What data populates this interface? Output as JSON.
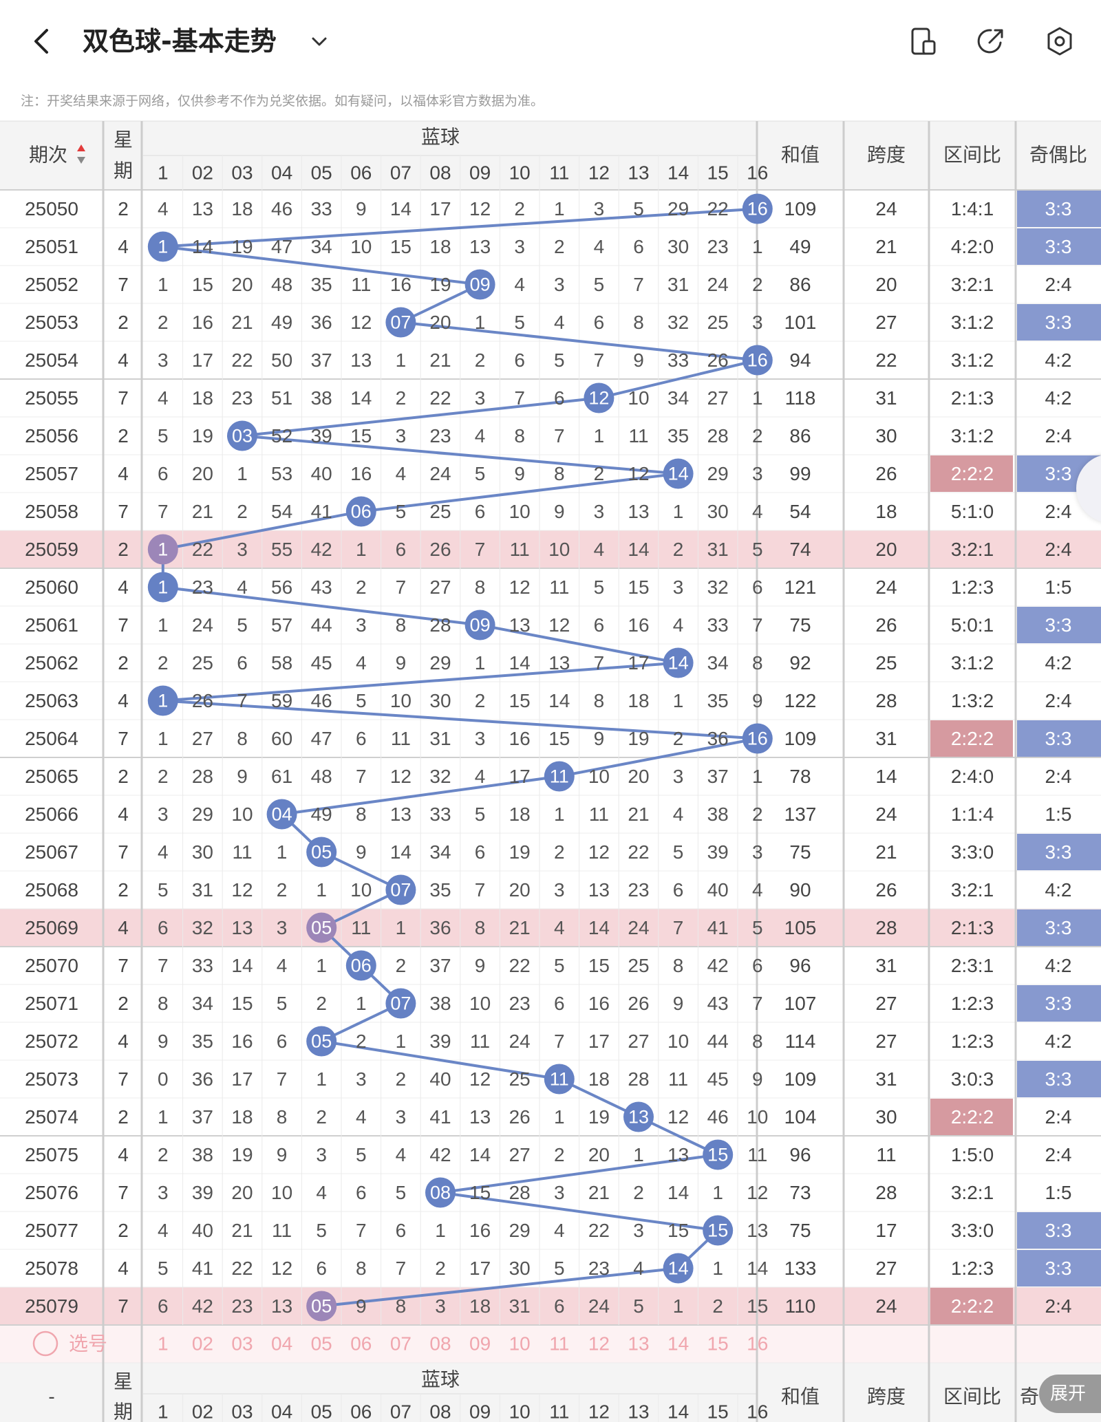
{
  "header": {
    "title": "双色球-基本走势",
    "note": "注：开奖结果来源于网络，仅供参考不作为兑奖依据。如有疑问，以福体彩官方数据为准。"
  },
  "icons": {
    "back": "back-chevron-icon",
    "dropdown": "chevron-down-icon",
    "device": "device-layout-icon",
    "share": "share-icon",
    "settings": "settings-icon"
  },
  "table": {
    "col_issue": "期次",
    "col_week": "星期",
    "col_blue": "蓝球",
    "col_sum": "和值",
    "col_span": "跨度",
    "col_zone": "区间比",
    "col_oddeven": "奇偶比",
    "blue_labels": [
      "1",
      "02",
      "03",
      "04",
      "05",
      "06",
      "07",
      "08",
      "09",
      "10",
      "11",
      "12",
      "13",
      "14",
      "15",
      "16"
    ],
    "rows": [
      {
        "issue": "25050",
        "week": "2",
        "cells": [
          "4",
          "13",
          "18",
          "46",
          "33",
          "9",
          "14",
          "17",
          "12",
          "2",
          "1",
          "3",
          "5",
          "29",
          "22",
          "16"
        ],
        "hit": 16,
        "sum": "109",
        "span": "24",
        "zone": "1:4:1",
        "oe": "3:3",
        "hl": "",
        "zone_hl": false,
        "oe_hl": true
      },
      {
        "issue": "25051",
        "week": "4",
        "cells": [
          "1",
          "14",
          "19",
          "47",
          "34",
          "10",
          "15",
          "18",
          "13",
          "3",
          "2",
          "4",
          "6",
          "30",
          "23",
          "1"
        ],
        "hit": 1,
        "sum": "49",
        "span": "21",
        "zone": "4:2:0",
        "oe": "3:3",
        "hl": "",
        "zone_hl": false,
        "oe_hl": true
      },
      {
        "issue": "25052",
        "week": "7",
        "cells": [
          "1",
          "15",
          "20",
          "48",
          "35",
          "11",
          "16",
          "19",
          "09",
          "4",
          "3",
          "5",
          "7",
          "31",
          "24",
          "2"
        ],
        "hit": 9,
        "sum": "86",
        "span": "20",
        "zone": "3:2:1",
        "oe": "2:4",
        "hl": "",
        "zone_hl": false,
        "oe_hl": false
      },
      {
        "issue": "25053",
        "week": "2",
        "cells": [
          "2",
          "16",
          "21",
          "49",
          "36",
          "12",
          "07",
          "20",
          "1",
          "5",
          "4",
          "6",
          "8",
          "32",
          "25",
          "3"
        ],
        "hit": 7,
        "sum": "101",
        "span": "27",
        "zone": "3:1:2",
        "oe": "3:3",
        "hl": "",
        "zone_hl": false,
        "oe_hl": true
      },
      {
        "issue": "25054",
        "week": "4",
        "cells": [
          "3",
          "17",
          "22",
          "50",
          "37",
          "13",
          "1",
          "21",
          "2",
          "6",
          "5",
          "7",
          "9",
          "33",
          "26",
          "16"
        ],
        "hit": 16,
        "sum": "94",
        "span": "22",
        "zone": "3:1:2",
        "oe": "4:2",
        "hl": "",
        "zone_hl": false,
        "oe_hl": false
      },
      {
        "issue": "25055",
        "week": "7",
        "cells": [
          "4",
          "18",
          "23",
          "51",
          "38",
          "14",
          "2",
          "22",
          "3",
          "7",
          "6",
          "12",
          "10",
          "34",
          "27",
          "1"
        ],
        "hit": 12,
        "sum": "118",
        "span": "31",
        "zone": "2:1:3",
        "oe": "4:2",
        "hl": "",
        "zone_hl": false,
        "oe_hl": false
      },
      {
        "issue": "25056",
        "week": "2",
        "cells": [
          "5",
          "19",
          "03",
          "52",
          "39",
          "15",
          "3",
          "23",
          "4",
          "8",
          "7",
          "1",
          "11",
          "35",
          "28",
          "2"
        ],
        "hit": 3,
        "sum": "86",
        "span": "30",
        "zone": "3:1:2",
        "oe": "2:4",
        "hl": "",
        "zone_hl": false,
        "oe_hl": false
      },
      {
        "issue": "25057",
        "week": "4",
        "cells": [
          "6",
          "20",
          "1",
          "53",
          "40",
          "16",
          "4",
          "24",
          "5",
          "9",
          "8",
          "2",
          "12",
          "14",
          "29",
          "3"
        ],
        "hit": 14,
        "sum": "99",
        "span": "26",
        "zone": "2:2:2",
        "oe": "3:3",
        "hl": "",
        "zone_hl": true,
        "oe_hl": true
      },
      {
        "issue": "25058",
        "week": "7",
        "cells": [
          "7",
          "21",
          "2",
          "54",
          "41",
          "06",
          "5",
          "25",
          "6",
          "10",
          "9",
          "3",
          "13",
          "1",
          "30",
          "4"
        ],
        "hit": 6,
        "sum": "54",
        "span": "18",
        "zone": "5:1:0",
        "oe": "2:4",
        "hl": "",
        "zone_hl": false,
        "oe_hl": false
      },
      {
        "issue": "25059",
        "week": "2",
        "cells": [
          "1",
          "22",
          "3",
          "55",
          "42",
          "1",
          "6",
          "26",
          "7",
          "11",
          "10",
          "4",
          "14",
          "2",
          "31",
          "5"
        ],
        "hit": 1,
        "sum": "74",
        "span": "20",
        "zone": "3:2:1",
        "oe": "2:4",
        "hl": "pink",
        "zone_hl": false,
        "oe_hl": false
      },
      {
        "issue": "25060",
        "week": "4",
        "cells": [
          "1",
          "23",
          "4",
          "56",
          "43",
          "2",
          "7",
          "27",
          "8",
          "12",
          "11",
          "5",
          "15",
          "3",
          "32",
          "6"
        ],
        "hit": 1,
        "sum": "121",
        "span": "24",
        "zone": "1:2:3",
        "oe": "1:5",
        "hl": "",
        "zone_hl": false,
        "oe_hl": false
      },
      {
        "issue": "25061",
        "week": "7",
        "cells": [
          "1",
          "24",
          "5",
          "57",
          "44",
          "3",
          "8",
          "28",
          "09",
          "13",
          "12",
          "6",
          "16",
          "4",
          "33",
          "7"
        ],
        "hit": 9,
        "sum": "75",
        "span": "26",
        "zone": "5:0:1",
        "oe": "3:3",
        "hl": "",
        "zone_hl": false,
        "oe_hl": true
      },
      {
        "issue": "25062",
        "week": "2",
        "cells": [
          "2",
          "25",
          "6",
          "58",
          "45",
          "4",
          "9",
          "29",
          "1",
          "14",
          "13",
          "7",
          "17",
          "14",
          "34",
          "8"
        ],
        "hit": 14,
        "sum": "92",
        "span": "25",
        "zone": "3:1:2",
        "oe": "4:2",
        "hl": "",
        "zone_hl": false,
        "oe_hl": false
      },
      {
        "issue": "25063",
        "week": "4",
        "cells": [
          "1",
          "26",
          "7",
          "59",
          "46",
          "5",
          "10",
          "30",
          "2",
          "15",
          "14",
          "8",
          "18",
          "1",
          "35",
          "9"
        ],
        "hit": 1,
        "sum": "122",
        "span": "28",
        "zone": "1:3:2",
        "oe": "2:4",
        "hl": "",
        "zone_hl": false,
        "oe_hl": false
      },
      {
        "issue": "25064",
        "week": "7",
        "cells": [
          "1",
          "27",
          "8",
          "60",
          "47",
          "6",
          "11",
          "31",
          "3",
          "16",
          "15",
          "9",
          "19",
          "2",
          "36",
          "16"
        ],
        "hit": 16,
        "sum": "109",
        "span": "31",
        "zone": "2:2:2",
        "oe": "3:3",
        "hl": "",
        "zone_hl": true,
        "oe_hl": true
      },
      {
        "issue": "25065",
        "week": "2",
        "cells": [
          "2",
          "28",
          "9",
          "61",
          "48",
          "7",
          "12",
          "32",
          "4",
          "17",
          "11",
          "10",
          "20",
          "3",
          "37",
          "1"
        ],
        "hit": 11,
        "sum": "78",
        "span": "14",
        "zone": "2:4:0",
        "oe": "2:4",
        "hl": "",
        "zone_hl": false,
        "oe_hl": false
      },
      {
        "issue": "25066",
        "week": "4",
        "cells": [
          "3",
          "29",
          "10",
          "04",
          "49",
          "8",
          "13",
          "33",
          "5",
          "18",
          "1",
          "11",
          "21",
          "4",
          "38",
          "2"
        ],
        "hit": 4,
        "sum": "137",
        "span": "24",
        "zone": "1:1:4",
        "oe": "1:5",
        "hl": "",
        "zone_hl": false,
        "oe_hl": false
      },
      {
        "issue": "25067",
        "week": "7",
        "cells": [
          "4",
          "30",
          "11",
          "1",
          "05",
          "9",
          "14",
          "34",
          "6",
          "19",
          "2",
          "12",
          "22",
          "5",
          "39",
          "3"
        ],
        "hit": 5,
        "sum": "75",
        "span": "21",
        "zone": "3:3:0",
        "oe": "3:3",
        "hl": "",
        "zone_hl": false,
        "oe_hl": true
      },
      {
        "issue": "25068",
        "week": "2",
        "cells": [
          "5",
          "31",
          "12",
          "2",
          "1",
          "10",
          "07",
          "35",
          "7",
          "20",
          "3",
          "13",
          "23",
          "6",
          "40",
          "4"
        ],
        "hit": 7,
        "sum": "90",
        "span": "26",
        "zone": "3:2:1",
        "oe": "4:2",
        "hl": "",
        "zone_hl": false,
        "oe_hl": false
      },
      {
        "issue": "25069",
        "week": "4",
        "cells": [
          "6",
          "32",
          "13",
          "3",
          "05",
          "11",
          "1",
          "36",
          "8",
          "21",
          "4",
          "14",
          "24",
          "7",
          "41",
          "5"
        ],
        "hit": 5,
        "sum": "105",
        "span": "28",
        "zone": "2:1:3",
        "oe": "3:3",
        "hl": "pink",
        "zone_hl": false,
        "oe_hl": true
      },
      {
        "issue": "25070",
        "week": "7",
        "cells": [
          "7",
          "33",
          "14",
          "4",
          "1",
          "06",
          "2",
          "37",
          "9",
          "22",
          "5",
          "15",
          "25",
          "8",
          "42",
          "6"
        ],
        "hit": 6,
        "sum": "96",
        "span": "31",
        "zone": "2:3:1",
        "oe": "4:2",
        "hl": "",
        "zone_hl": false,
        "oe_hl": false
      },
      {
        "issue": "25071",
        "week": "2",
        "cells": [
          "8",
          "34",
          "15",
          "5",
          "2",
          "1",
          "07",
          "38",
          "10",
          "23",
          "6",
          "16",
          "26",
          "9",
          "43",
          "7"
        ],
        "hit": 7,
        "sum": "107",
        "span": "27",
        "zone": "1:2:3",
        "oe": "3:3",
        "hl": "",
        "zone_hl": false,
        "oe_hl": true
      },
      {
        "issue": "25072",
        "week": "4",
        "cells": [
          "9",
          "35",
          "16",
          "6",
          "05",
          "2",
          "1",
          "39",
          "11",
          "24",
          "7",
          "17",
          "27",
          "10",
          "44",
          "8"
        ],
        "hit": 5,
        "sum": "114",
        "span": "27",
        "zone": "1:2:3",
        "oe": "4:2",
        "hl": "",
        "zone_hl": false,
        "oe_hl": false
      },
      {
        "issue": "25073",
        "week": "7",
        "cells": [
          "0",
          "36",
          "17",
          "7",
          "1",
          "3",
          "2",
          "40",
          "12",
          "25",
          "11",
          "18",
          "28",
          "11",
          "45",
          "9"
        ],
        "hit": 11,
        "sum": "109",
        "span": "31",
        "zone": "3:0:3",
        "oe": "3:3",
        "hl": "",
        "zone_hl": false,
        "oe_hl": true
      },
      {
        "issue": "25074",
        "week": "2",
        "cells": [
          "1",
          "37",
          "18",
          "8",
          "2",
          "4",
          "3",
          "41",
          "13",
          "26",
          "1",
          "19",
          "13",
          "12",
          "46",
          "10"
        ],
        "hit": 13,
        "sum": "104",
        "span": "30",
        "zone": "2:2:2",
        "oe": "2:4",
        "hl": "",
        "zone_hl": true,
        "oe_hl": false
      },
      {
        "issue": "25075",
        "week": "4",
        "cells": [
          "2",
          "38",
          "19",
          "9",
          "3",
          "5",
          "4",
          "42",
          "14",
          "27",
          "2",
          "20",
          "1",
          "13",
          "15",
          "11"
        ],
        "hit": 15,
        "sum": "96",
        "span": "11",
        "zone": "1:5:0",
        "oe": "2:4",
        "hl": "",
        "zone_hl": false,
        "oe_hl": false
      },
      {
        "issue": "25076",
        "week": "7",
        "cells": [
          "3",
          "39",
          "20",
          "10",
          "4",
          "6",
          "5",
          "08",
          "15",
          "28",
          "3",
          "21",
          "2",
          "14",
          "1",
          "12"
        ],
        "hit": 8,
        "sum": "73",
        "span": "28",
        "zone": "3:2:1",
        "oe": "1:5",
        "hl": "",
        "zone_hl": false,
        "oe_hl": false
      },
      {
        "issue": "25077",
        "week": "2",
        "cells": [
          "4",
          "40",
          "21",
          "11",
          "5",
          "7",
          "6",
          "1",
          "16",
          "29",
          "4",
          "22",
          "3",
          "15",
          "15",
          "13"
        ],
        "hit": 15,
        "sum": "75",
        "span": "17",
        "zone": "3:3:0",
        "oe": "3:3",
        "hl": "",
        "zone_hl": false,
        "oe_hl": true
      },
      {
        "issue": "25078",
        "week": "4",
        "cells": [
          "5",
          "41",
          "22",
          "12",
          "6",
          "8",
          "7",
          "2",
          "17",
          "30",
          "5",
          "23",
          "4",
          "14",
          "1",
          "14"
        ],
        "hit": 14,
        "sum": "133",
        "span": "27",
        "zone": "1:2:3",
        "oe": "3:3",
        "hl": "",
        "zone_hl": false,
        "oe_hl": true
      },
      {
        "issue": "25079",
        "week": "7",
        "cells": [
          "6",
          "42",
          "23",
          "13",
          "05",
          "9",
          "8",
          "3",
          "18",
          "31",
          "6",
          "24",
          "5",
          "1",
          "2",
          "15"
        ],
        "hit": 5,
        "sum": "110",
        "span": "24",
        "zone": "2:2:2",
        "oe": "2:4",
        "hl": "pink",
        "zone_hl": true,
        "oe_hl": false
      }
    ],
    "select_label": "选号",
    "select_numbers": [
      "1",
      "02",
      "03",
      "04",
      "05",
      "06",
      "07",
      "08",
      "09",
      "10",
      "11",
      "12",
      "13",
      "14",
      "15",
      "16"
    ],
    "bottom_issue": "-",
    "bottom_week": "星期",
    "bottom_blue": "蓝球",
    "bottom_blue_labels": [
      "1",
      "02",
      "03",
      "04",
      "05",
      "06",
      "07",
      "08",
      "09",
      "10",
      "11",
      "12",
      "13",
      "14",
      "15",
      "16"
    ],
    "bottom_sum": "和值",
    "bottom_span": "跨度",
    "bottom_zone": "区间比",
    "bottom_oddeven": "奇"
  },
  "expand_button": "展开",
  "colors": {
    "ball": "#6581c4",
    "ball_pink": "#9c86b8",
    "line": "#6a86c6",
    "row_pink": "#f6d7da",
    "zone_hl": "#d69aa0",
    "oe_hl": "#8799cf",
    "header_bg": "#f4f4f4",
    "select_text": "#f0a6ae"
  }
}
